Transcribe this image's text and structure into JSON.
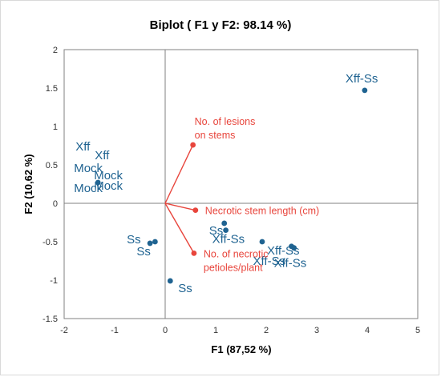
{
  "chart_data": {
    "type": "scatter",
    "title": "Biplot ( F1 y F2: 98.14 %)",
    "xlabel": "F1 (87,52 %)",
    "ylabel": "F2 (10,62 %)",
    "xlim": [
      -2,
      5
    ],
    "ylim": [
      -1.5,
      2
    ],
    "xticks": [
      "-2",
      "-1",
      "0",
      "1",
      "2",
      "3",
      "4",
      "5"
    ],
    "yticks": [
      "2",
      "1.5",
      "1",
      "0.5",
      "0",
      "-0.5",
      "-1",
      "-1.5"
    ],
    "grid": false,
    "colors": {
      "observations": "#1f6391",
      "variables": "#e8453c",
      "axes": "#808080"
    },
    "observations": [
      {
        "label": "Xff-Ss",
        "x": 3.95,
        "y": 1.47
      },
      {
        "label": "Xff",
        "x": -1.33,
        "y": 0.27
      },
      {
        "label": "Xff",
        "x": -1.33,
        "y": 0.27
      },
      {
        "label": "Mock",
        "x": -1.33,
        "y": 0.27
      },
      {
        "label": "Mock",
        "x": -1.33,
        "y": 0.27
      },
      {
        "label": "Mock",
        "x": -1.33,
        "y": 0.27
      },
      {
        "label": "Mock",
        "x": -1.33,
        "y": 0.27
      },
      {
        "label": "Ss",
        "x": -0.3,
        "y": -0.52
      },
      {
        "label": "Ss",
        "x": -0.2,
        "y": -0.5
      },
      {
        "label": "Ss",
        "x": 0.1,
        "y": -1.01
      },
      {
        "label": "Ss",
        "x": 1.17,
        "y": -0.26
      },
      {
        "label": "Xff-Ss",
        "x": 1.2,
        "y": -0.35
      },
      {
        "label": "Xff-Ss",
        "x": 1.92,
        "y": -0.5
      },
      {
        "label": "Xff-Ss",
        "x": 2.5,
        "y": -0.56
      },
      {
        "label": "Xff-Ss",
        "x": 2.55,
        "y": -0.58
      }
    ],
    "variables": [
      {
        "label_lines": [
          "No. of lesions",
          "on stems"
        ],
        "x": 0.55,
        "y": 0.76
      },
      {
        "label_lines": [
          "Necrotic stem length (cm)"
        ],
        "x": 0.6,
        "y": -0.09
      },
      {
        "label_lines": [
          "No. of necrotic",
          "petioles/plant"
        ],
        "x": 0.57,
        "y": -0.65
      }
    ]
  }
}
